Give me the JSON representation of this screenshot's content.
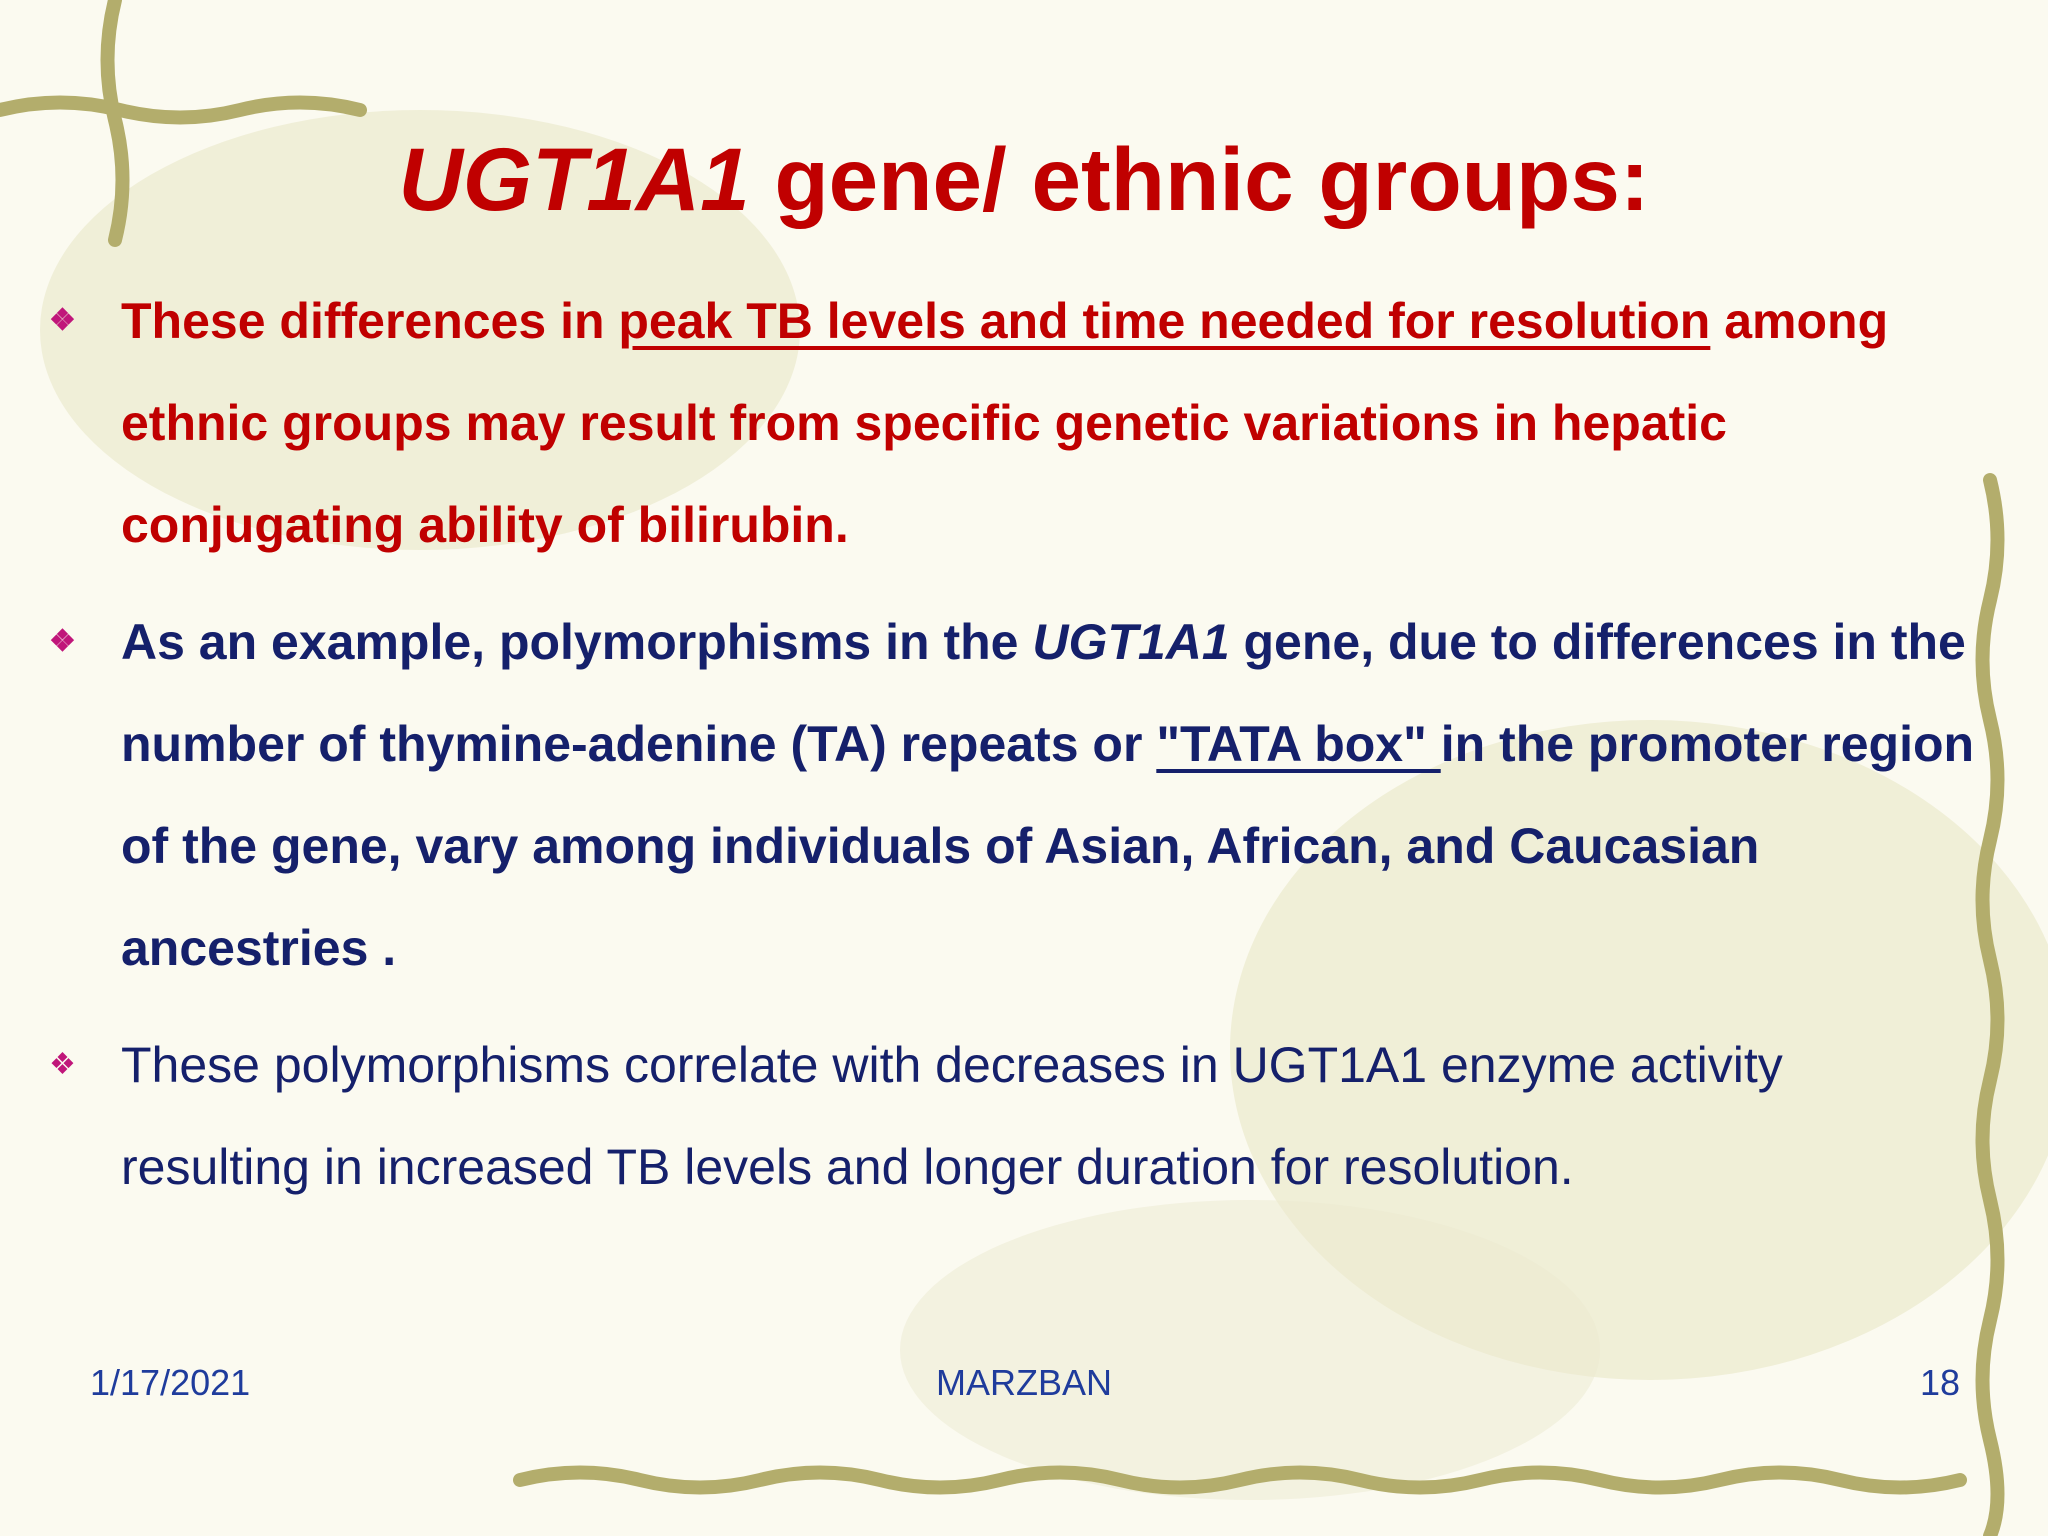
{
  "slide": {
    "title": {
      "italic": "UGT1A1",
      "rest": " gene/ ethnic groups:"
    },
    "bullets": [
      {
        "parts": [
          "These differences in ",
          "peak TB levels and time needed for resolution",
          " among ethnic groups may result from specific genetic variations in hepatic conjugating ability of bilirubin."
        ]
      },
      {
        "parts": [
          " As an example, polymorphisms in the ",
          "UGT1A1",
          " gene, due to differences in the number of thymine-adenine (TA) repeats or ",
          "\"TATA box\" ",
          "in the promoter region of the gene, vary among individuals of Asian, African, and Caucasian ancestries ."
        ]
      },
      {
        "parts": [
          "These polymorphisms correlate with decreases in UGT1A1 enzyme activity resulting in increased TB levels and longer duration for resolution."
        ]
      }
    ],
    "footer": {
      "date": "1/17/2021",
      "author": "MARZBAN",
      "page": "18"
    }
  }
}
